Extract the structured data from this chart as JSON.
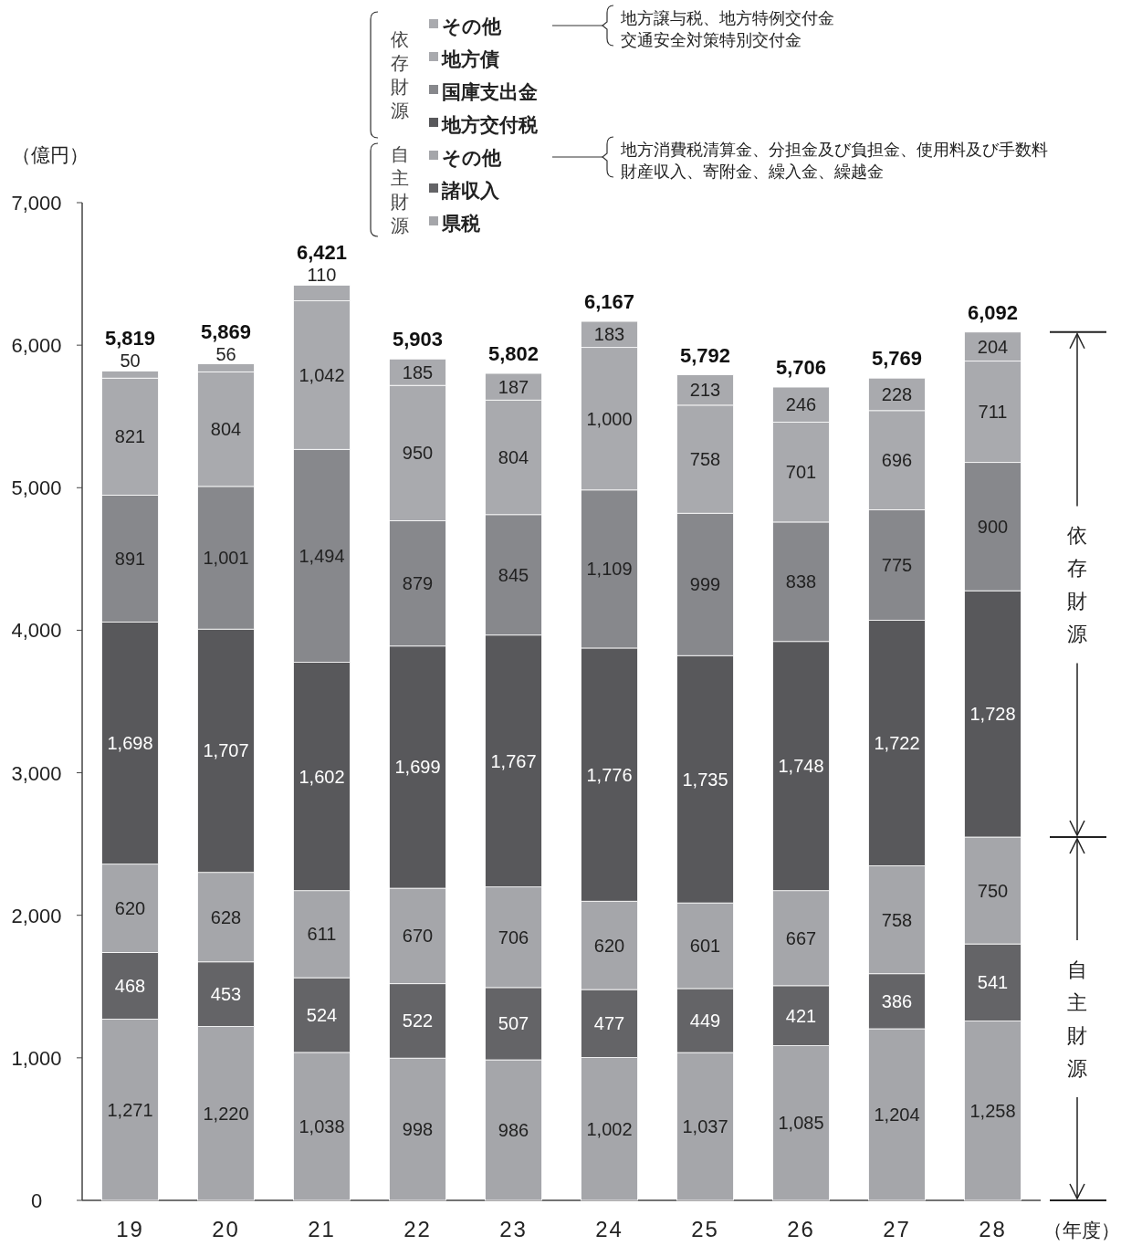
{
  "chart_data": {
    "type": "bar",
    "stacked": true,
    "ylabel": "（億円）",
    "xlabel": "（年度）",
    "categories": [
      "19",
      "20",
      "21",
      "22",
      "23",
      "24",
      "25",
      "26",
      "27",
      "28"
    ],
    "ylim": [
      0,
      7000
    ],
    "yticks": [
      {
        "value": 0,
        "label": "0"
      },
      {
        "value": 1000,
        "label": "1,000"
      },
      {
        "value": 2000,
        "label": "2,000"
      },
      {
        "value": 3000,
        "label": "3,000"
      },
      {
        "value": 4000,
        "label": "4,000"
      },
      {
        "value": 5000,
        "label": "5,000"
      },
      {
        "value": 6000,
        "label": "6,000"
      },
      {
        "value": 7000,
        "label": "7,000"
      }
    ],
    "grid": false,
    "legend": "top",
    "series": [
      {
        "name": "県税",
        "color": "#a5a6aa",
        "values": [
          1271,
          1220,
          1038,
          998,
          986,
          1002,
          1037,
          1085,
          1204,
          1258
        ],
        "value_labels": [
          "1,271",
          "1,220",
          "1,038",
          "998",
          "986",
          "1,002",
          "1,037",
          "1,085",
          "1,204",
          "1,258"
        ]
      },
      {
        "name": "諸収入",
        "color": "#646467",
        "values": [
          468,
          453,
          524,
          522,
          507,
          477,
          449,
          421,
          386,
          541
        ],
        "value_labels": [
          "468",
          "453",
          "524",
          "522",
          "507",
          "477",
          "449",
          "421",
          "386",
          "541"
        ]
      },
      {
        "name": "その他",
        "color": "#a5a6aa",
        "values": [
          620,
          628,
          611,
          670,
          706,
          620,
          601,
          667,
          758,
          750
        ],
        "value_labels": [
          "620",
          "628",
          "611",
          "670",
          "706",
          "620",
          "601",
          "667",
          "758",
          "750"
        ]
      },
      {
        "name": "地方交付税",
        "color": "#58585b",
        "values": [
          1698,
          1707,
          1602,
          1699,
          1767,
          1776,
          1735,
          1748,
          1722,
          1728
        ],
        "value_labels": [
          "1,698",
          "1,707",
          "1,602",
          "1,699",
          "1,767",
          "1,776",
          "1,735",
          "1,748",
          "1,722",
          "1,728"
        ]
      },
      {
        "name": "国庫支出金",
        "color": "#87888c",
        "values": [
          891,
          1001,
          1494,
          879,
          845,
          1109,
          999,
          838,
          775,
          900
        ],
        "value_labels": [
          "891",
          "1,001",
          "1,494",
          "879",
          "845",
          "1,109",
          "999",
          "838",
          "775",
          "900"
        ]
      },
      {
        "name": "地方債",
        "color": "#a9aaae",
        "values": [
          821,
          804,
          1042,
          950,
          804,
          1000,
          758,
          701,
          696,
          711
        ],
        "value_labels": [
          "821",
          "804",
          "1,042",
          "950",
          "804",
          "1,000",
          "758",
          "701",
          "696",
          "711"
        ]
      },
      {
        "name": "その他",
        "color": "#a9aaae",
        "values": [
          50,
          56,
          110,
          185,
          187,
          183,
          213,
          246,
          228,
          204
        ],
        "value_labels": [
          "50",
          "56",
          "110",
          "185",
          "187",
          "183",
          "213",
          "246",
          "228",
          "204"
        ]
      }
    ],
    "totals": [
      "5,819",
      "5,869",
      "6,421",
      "5,903",
      "5,802",
      "6,167",
      "5,792",
      "5,706",
      "5,769",
      "6,092"
    ],
    "annotations": [
      "依存財源",
      "自主財源",
      "依存財源",
      "自主財源",
      "地方譲与税、地方特例交付金",
      "交通安全対策特別交付金",
      "地方消費税清算金、分担金及び負担金、使用料及び手数料",
      "財産収入、寄附金、繰入金、繰越金"
    ]
  }
}
